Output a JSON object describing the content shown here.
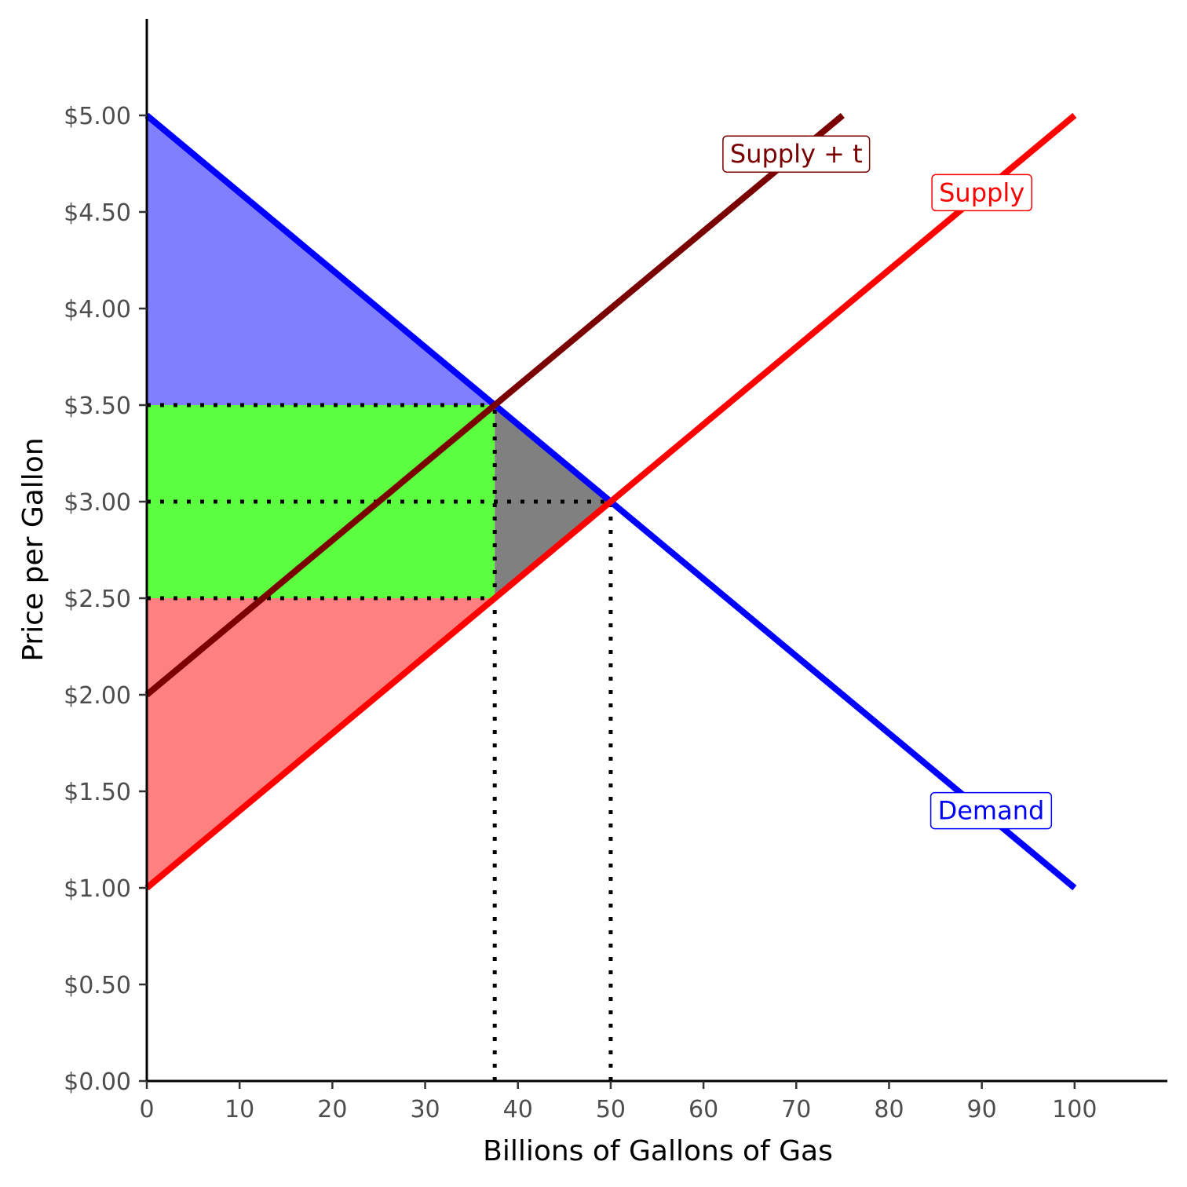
{
  "chart_data": {
    "type": "line",
    "xlabel": "Billions of Gallons of Gas",
    "ylabel": "Price per Gallon",
    "xlim": [
      0,
      110
    ],
    "ylim": [
      0,
      5.5
    ],
    "x_ticks": [
      0,
      10,
      20,
      30,
      40,
      50,
      60,
      70,
      80,
      90,
      100
    ],
    "x_tick_labels": [
      "0",
      "10",
      "20",
      "30",
      "40",
      "50",
      "60",
      "70",
      "80",
      "90",
      "100"
    ],
    "y_ticks": [
      0,
      0.5,
      1,
      1.5,
      2,
      2.5,
      3,
      3.5,
      4,
      4.5,
      5
    ],
    "y_tick_labels": [
      "$0.00",
      "$0.50",
      "$1.00",
      "$1.50",
      "$2.00",
      "$2.50",
      "$3.00",
      "$3.50",
      "$4.00",
      "$4.50",
      "$5.00"
    ],
    "grid": false,
    "series": [
      {
        "name": "Demand",
        "color": "#0000ff",
        "points": [
          [
            0,
            5
          ],
          [
            100,
            1
          ]
        ],
        "label_at": [
          91,
          1.4
        ]
      },
      {
        "name": "Supply",
        "color": "#ff0000",
        "points": [
          [
            0,
            1
          ],
          [
            100,
            5
          ]
        ],
        "label_at": [
          90,
          4.6
        ]
      },
      {
        "name": "Supply + t",
        "color": "#7a0000",
        "points": [
          [
            0,
            2
          ],
          [
            75,
            5
          ]
        ],
        "label_at": [
          70,
          4.8
        ]
      }
    ],
    "shaded_regions": [
      {
        "name": "consumer-surplus",
        "color": "#8080ff",
        "points": [
          [
            0,
            5
          ],
          [
            37.5,
            3.5
          ],
          [
            0,
            3.5
          ]
        ]
      },
      {
        "name": "tax-revenue",
        "color": "#5bff40",
        "points": [
          [
            0,
            3.5
          ],
          [
            37.5,
            3.5
          ],
          [
            37.5,
            2.5
          ],
          [
            0,
            2.5
          ]
        ]
      },
      {
        "name": "producer-surplus",
        "color": "#ff8080",
        "points": [
          [
            0,
            2.5
          ],
          [
            37.5,
            2.5
          ],
          [
            0,
            1
          ]
        ]
      },
      {
        "name": "deadweight-loss",
        "color": "#808080",
        "points": [
          [
            37.5,
            3.5
          ],
          [
            50,
            3
          ],
          [
            37.5,
            2.5
          ]
        ]
      }
    ],
    "reference_lines": [
      {
        "points": [
          [
            0,
            3.5
          ],
          [
            37.5,
            3.5
          ]
        ]
      },
      {
        "points": [
          [
            0,
            3
          ],
          [
            50,
            3
          ]
        ]
      },
      {
        "points": [
          [
            0,
            2.5
          ],
          [
            37.5,
            2.5
          ]
        ]
      },
      {
        "points": [
          [
            37.5,
            0
          ],
          [
            37.5,
            3.5
          ]
        ]
      },
      {
        "points": [
          [
            50,
            0
          ],
          [
            50,
            3
          ]
        ]
      }
    ]
  }
}
